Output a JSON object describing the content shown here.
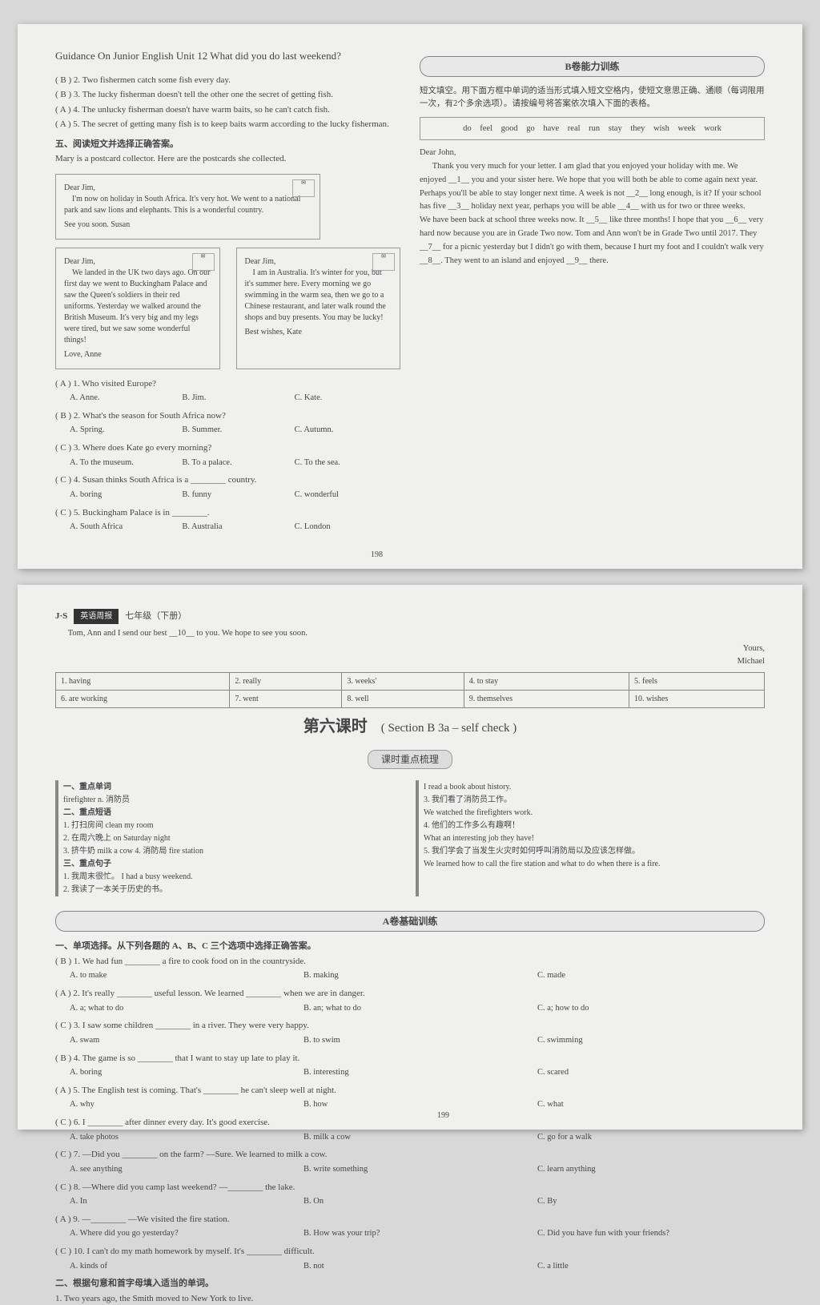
{
  "page1": {
    "header": "Guidance On Junior English          Unit 12   What did you do last weekend?",
    "pre_q": [
      "( B ) 2. Two fishermen catch some fish every day.",
      "( B ) 3. The lucky fisherman doesn't tell the other one the secret of getting fish.",
      "( A ) 4. The unlucky fisherman doesn't have warm baits, so he can't catch fish.",
      "( A ) 5. The secret of getting many fish is to keep baits warm according to the lucky fisherman."
    ],
    "sec5_title": "五、阅读短文并选择正确答案。",
    "sec5_intro": "Mary is a postcard collector. Here are the postcards she collected.",
    "postcards": [
      {
        "greeting": "Dear Jim,",
        "body": "I'm now on holiday in South Africa. It's very hot. We went to a national park and saw lions and elephants. This is a wonderful country.",
        "sign": "See you soon. Susan"
      },
      {
        "greeting": "Dear Jim,",
        "body": "We landed in the UK two days ago. On our first day we went to Buckingham Palace and saw the Queen's soldiers in their red uniforms. Yesterday we walked around the British Museum. It's very big and my legs were tired, but we saw some wonderful things!",
        "sign": "Love, Anne"
      },
      {
        "greeting": "Dear Jim,",
        "body": "I am in Australia. It's winter for you, but it's summer here. Every morning we go swimming in the warm sea, then we go to a Chinese restaurant, and later walk round the shops and buy presents. You may be lucky!",
        "sign": "Best wishes, Kate"
      }
    ],
    "rc_q": [
      {
        "n": "( A ) 1.",
        "q": "Who visited Europe?",
        "a": "A. Anne.",
        "b": "B. Jim.",
        "c": "C. Kate."
      },
      {
        "n": "( B ) 2.",
        "q": "What's the season for South Africa now?",
        "a": "A. Spring.",
        "b": "B. Summer.",
        "c": "C. Autumn."
      },
      {
        "n": "( C ) 3.",
        "q": "Where does Kate go every morning?",
        "a": "A. To the museum.",
        "b": "B. To a palace.",
        "c": "C. To the sea."
      },
      {
        "n": "( C ) 4.",
        "q": "Susan thinks South Africa is a ________ country.",
        "a": "A. boring",
        "b": "B. funny",
        "c": "C. wonderful"
      },
      {
        "n": "( C ) 5.",
        "q": "Buckingham Palace is in ________.",
        "a": "A. South Africa",
        "b": "B. Australia",
        "c": "C. London"
      }
    ],
    "b_section": "B卷能力训练",
    "cloze_title": "短文填空。用下面方框中单词的适当形式填入短文空格内，使短文意思正确、通顺（每词限用一次，有2个多余选项）。请按编号将答案依次填入下面的表格。",
    "word_bank": "do   feel   good   go   have   real   run   stay   they   wish   week   work",
    "letter_greeting": "Dear John,",
    "letter_body": "Thank you very much for your letter. I am glad that you enjoyed your holiday with me. We enjoyed __1__ you and your sister here. We hope that you will both be able to come again next year. Perhaps you'll be able to stay longer next time. A week is not __2__ long enough, is it? If your school has five __3__ holiday next year, perhaps you will be able __4__ with us for two or three weeks.\nWe have been back at school three weeks now. It __5__ like three months! I hope that you __6__ very hard now because you are in Grade Two now. Tom and Ann won't be in Grade Two until 2017. They __7__ for a picnic yesterday but I didn't go with them, because I hurt my foot and I couldn't walk very __8__. They went to an island and enjoyed __9__ there.",
    "pagenum_left": "198"
  },
  "page2": {
    "topbar_label": "英语周报",
    "topbar_grade": "七年级（下册）",
    "msg_line": "Tom, Ann and I send our best __10__ to you. We hope to see you soon.",
    "msg_sign1": "Yours,",
    "msg_sign2": "Michael",
    "vocab": [
      [
        "1. having",
        "2. really",
        "3. weeks'",
        "4. to stay",
        "5. feels"
      ],
      [
        "6. are working",
        "7. went",
        "8. well",
        "9. themselves",
        "10. wishes"
      ]
    ],
    "lesson_title": "第六课时",
    "lesson_sub": "( Section B   3a – self check )",
    "kebiao_label": "课时重点梳理",
    "kebiao_l_title1": "一、重点单词",
    "kebiao_l_w1": "firefighter n. 消防员",
    "kebiao_l_title2": "二、重点短语",
    "kebiao_l_phrases": [
      "1. 打扫房间 clean my room",
      "2. 在周六晚上 on Saturday night",
      "3. 挤牛奶 milk a cow       4. 消防局 fire station"
    ],
    "kebiao_l_title3": "三、重点句子",
    "kebiao_l_sent": [
      "1. 我周末很忙。 I had a busy weekend.",
      "2. 我读了一本关于历史的书。"
    ],
    "kebiao_r": [
      "I read a book about history.",
      "3. 我们看了消防员工作。",
      "We watched the firefighters work.",
      "4. 他们的工作多么有趣啊！",
      "What an interesting job they have!",
      "5. 我们学会了当发生火灾时如何呼叫消防局以及应该怎样做。",
      "We learned how to call the fire station and what to do when there is a fire."
    ],
    "a_section": "A卷基础训练",
    "mc_title": "一、单项选择。从下列各题的 A、B、C 三个选项中选择正确答案。",
    "mc": [
      {
        "h": "( B ) 1. We had fun ________ a fire to cook food on in the countryside.",
        "a": "A. to make",
        "b": "B. making",
        "c": "C. made"
      },
      {
        "h": "( A ) 2. It's really ________ useful lesson. We learned ________ when we are in danger.",
        "a": "A. a; what to do",
        "b": "B. an; what to do",
        "c": "C. a; how to do"
      },
      {
        "h": "( C ) 3. I saw some children ________ in a river. They were very happy.",
        "a": "A. swam",
        "b": "B. to swim",
        "c": "C. swimming"
      },
      {
        "h": "( B ) 4. The game is so ________ that I want to stay up late to play it.",
        "a": "A. boring",
        "b": "B. interesting",
        "c": "C. scared"
      },
      {
        "h": "( A ) 5. The English test is coming. That's ________ he can't sleep well at night.",
        "a": "A. why",
        "b": "B. how",
        "c": "C. what"
      },
      {
        "h": "( C ) 6. I ________ after dinner every day. It's good exercise.",
        "a": "A. take photos",
        "b": "B. milk a cow",
        "c": "C. go for a walk"
      },
      {
        "h": "( C ) 7. —Did you ________ on the farm? —Sure. We learned to milk a cow.",
        "a": "A. see anything",
        "b": "B. write something",
        "c": "C. learn anything"
      },
      {
        "h": "( C ) 8. —Where did you camp last weekend? —________ the lake.",
        "a": "A. In",
        "b": "B. On",
        "c": "C. By"
      },
      {
        "h": "( A ) 9. —________  —We visited the fire station.",
        "a": "A. Where did you go yesterday?",
        "b": "B. How was your trip?",
        "c": "C. Did you have fun with your friends?"
      },
      {
        "h": "( C ) 10. I can't do my math homework by myself. It's ________ difficult.",
        "a": "A. kinds of",
        "b": "B. not",
        "c": "C. a little"
      }
    ],
    "fill_title": "二、根据句意和首字母填入适当的单词。",
    "fill_q1": "1. Two years ago, the Smith moved to New York to live.",
    "pagenum_right": "199"
  }
}
